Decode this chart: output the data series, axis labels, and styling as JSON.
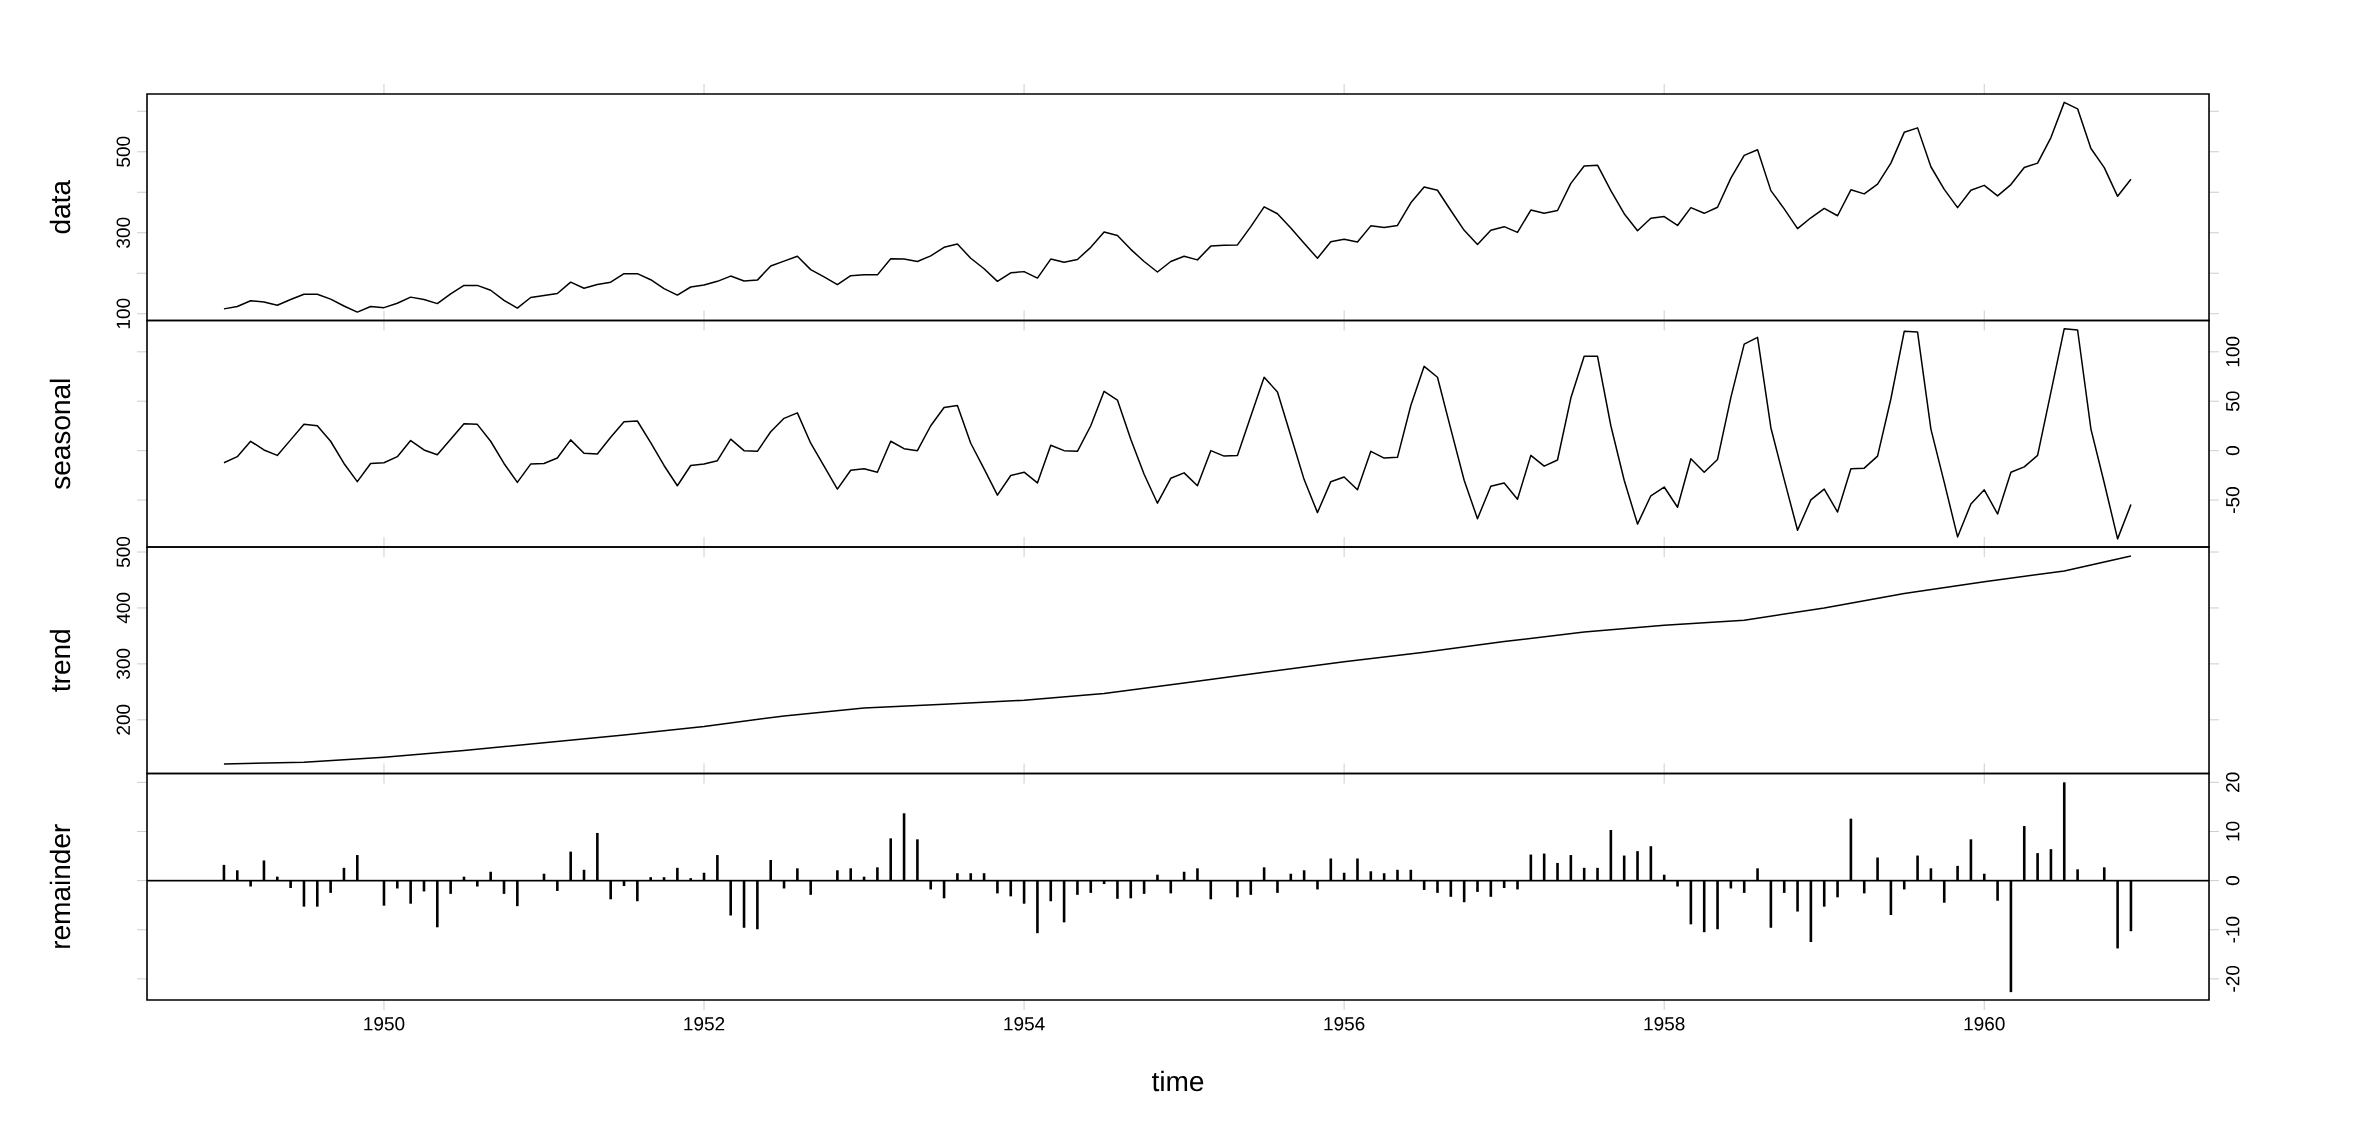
{
  "chart_data": [
    {
      "type": "line",
      "ylabel": "data",
      "tick_labels": "y",
      "xlim": [
        "1948-07-08",
        "1961-05-27"
      ],
      "xticks": [
        "1950",
        "1952",
        "1954",
        "1956",
        "1958",
        "1960"
      ],
      "ylim": [
        83.3,
        642.7
      ],
      "yticks": [
        100,
        {
          "value": 200,
          "label": null
        },
        300,
        {
          "value": 400,
          "label": null
        },
        500,
        {
          "value": 600,
          "label": null
        }
      ],
      "x": [
        "1949-01",
        "1949-02",
        "1949-03",
        "1949-04",
        "1949-05",
        "1949-06",
        "1949-07",
        "1949-08",
        "1949-09",
        "1949-10",
        "1949-11",
        "1949-12",
        "1950-01",
        "1950-02",
        "1950-03",
        "1950-04",
        "1950-05",
        "1950-06",
        "1950-07",
        "1950-08",
        "1950-09",
        "1950-10",
        "1950-11",
        "1950-12",
        "1951-01",
        "1951-02",
        "1951-03",
        "1951-04",
        "1951-05",
        "1951-06",
        "1951-07",
        "1951-08",
        "1951-09",
        "1951-10",
        "1951-11",
        "1951-12",
        "1952-01",
        "1952-02",
        "1952-03",
        "1952-04",
        "1952-05",
        "1952-06",
        "1952-07",
        "1952-08",
        "1952-09",
        "1952-10",
        "1952-11",
        "1952-12",
        "1953-01",
        "1953-02",
        "1953-03",
        "1953-04",
        "1953-05",
        "1953-06",
        "1953-07",
        "1953-08",
        "1953-09",
        "1953-10",
        "1953-11",
        "1953-12",
        "1954-01",
        "1954-02",
        "1954-03",
        "1954-04",
        "1954-05",
        "1954-06",
        "1954-07",
        "1954-08",
        "1954-09",
        "1954-10",
        "1954-11",
        "1954-12",
        "1955-01",
        "1955-02",
        "1955-03",
        "1955-04",
        "1955-05",
        "1955-06",
        "1955-07",
        "1955-08",
        "1955-09",
        "1955-10",
        "1955-11",
        "1955-12",
        "1956-01",
        "1956-02",
        "1956-03",
        "1956-04",
        "1956-05",
        "1956-06",
        "1956-07",
        "1956-08",
        "1956-09",
        "1956-10",
        "1956-11",
        "1956-12",
        "1957-01",
        "1957-02",
        "1957-03",
        "1957-04",
        "1957-05",
        "1957-06",
        "1957-07",
        "1957-08",
        "1957-09",
        "1957-10",
        "1957-11",
        "1957-12",
        "1958-01",
        "1958-02",
        "1958-03",
        "1958-04",
        "1958-05",
        "1958-06",
        "1958-07",
        "1958-08",
        "1958-09",
        "1958-10",
        "1958-11",
        "1958-12",
        "1959-01",
        "1959-02",
        "1959-03",
        "1959-04",
        "1959-05",
        "1959-06",
        "1959-07",
        "1959-08",
        "1959-09",
        "1959-10",
        "1959-11",
        "1959-12",
        "1960-01",
        "1960-02",
        "1960-03",
        "1960-04",
        "1960-05",
        "1960-06",
        "1960-07",
        "1960-08",
        "1960-09",
        "1960-10",
        "1960-11",
        "1960-12"
      ],
      "series": [
        {
          "color": "#000000",
          "values": [
            112,
            118,
            132,
            129,
            121,
            135,
            148,
            148,
            136,
            119,
            104,
            118,
            115,
            126,
            141,
            135,
            125,
            149,
            170,
            170,
            158,
            133,
            114,
            140,
            145,
            150,
            178,
            163,
            172,
            178,
            199,
            199,
            184,
            162,
            146,
            166,
            171,
            180,
            193,
            181,
            183,
            218,
            230,
            242,
            209,
            191,
            172,
            194,
            196,
            196,
            236,
            235,
            229,
            243,
            264,
            272,
            237,
            211,
            180,
            201,
            204,
            188,
            235,
            227,
            234,
            264,
            302,
            293,
            259,
            229,
            203,
            229,
            242,
            233,
            267,
            269,
            270,
            315,
            364,
            347,
            312,
            274,
            237,
            278,
            284,
            277,
            317,
            313,
            318,
            374,
            413,
            405,
            355,
            306,
            271,
            306,
            315,
            301,
            356,
            348,
            355,
            422,
            465,
            467,
            404,
            347,
            305,
            336,
            340,
            318,
            362,
            348,
            363,
            435,
            491,
            505,
            404,
            359,
            310,
            337,
            360,
            342,
            406,
            396,
            420,
            472,
            548,
            559,
            463,
            407,
            362,
            405,
            417,
            391,
            419,
            461,
            472,
            535,
            622,
            606,
            508,
            461,
            390,
            432
          ]
        }
      ]
    },
    {
      "type": "line",
      "ylabel": "seasonal",
      "tick_labels": "y",
      "xlim": [
        "1948-07-08",
        "1961-05-27"
      ],
      "xticks": [
        "1950",
        "1952",
        "1954",
        "1956",
        "1958",
        "1960"
      ],
      "y2lim": [
        -97.5,
        131.7
      ],
      "y2ticks": [
        -50,
        0,
        50,
        100
      ],
      "x": [
        "1949-01",
        "1949-02",
        "1949-03",
        "1949-04",
        "1949-05",
        "1949-06",
        "1949-07",
        "1949-08",
        "1949-09",
        "1949-10",
        "1949-11",
        "1949-12",
        "1950-01",
        "1950-02",
        "1950-03",
        "1950-04",
        "1950-05",
        "1950-06",
        "1950-07",
        "1950-08",
        "1950-09",
        "1950-10",
        "1950-11",
        "1950-12",
        "1951-01",
        "1951-02",
        "1951-03",
        "1951-04",
        "1951-05",
        "1951-06",
        "1951-07",
        "1951-08",
        "1951-09",
        "1951-10",
        "1951-11",
        "1951-12",
        "1952-01",
        "1952-02",
        "1952-03",
        "1952-04",
        "1952-05",
        "1952-06",
        "1952-07",
        "1952-08",
        "1952-09",
        "1952-10",
        "1952-11",
        "1952-12",
        "1953-01",
        "1953-02",
        "1953-03",
        "1953-04",
        "1953-05",
        "1953-06",
        "1953-07",
        "1953-08",
        "1953-09",
        "1953-10",
        "1953-11",
        "1953-12",
        "1954-01",
        "1954-02",
        "1954-03",
        "1954-04",
        "1954-05",
        "1954-06",
        "1954-07",
        "1954-08",
        "1954-09",
        "1954-10",
        "1954-11",
        "1954-12",
        "1955-01",
        "1955-02",
        "1955-03",
        "1955-04",
        "1955-05",
        "1955-06",
        "1955-07",
        "1955-08",
        "1955-09",
        "1955-10",
        "1955-11",
        "1955-12",
        "1956-01",
        "1956-02",
        "1956-03",
        "1956-04",
        "1956-05",
        "1956-06",
        "1956-07",
        "1956-08",
        "1956-09",
        "1956-10",
        "1956-11",
        "1956-12",
        "1957-01",
        "1957-02",
        "1957-03",
        "1957-04",
        "1957-05",
        "1957-06",
        "1957-07",
        "1957-08",
        "1957-09",
        "1957-10",
        "1957-11",
        "1957-12",
        "1958-01",
        "1958-02",
        "1958-03",
        "1958-04",
        "1958-05",
        "1958-06",
        "1958-07",
        "1958-08",
        "1958-09",
        "1958-10",
        "1958-11",
        "1958-12",
        "1959-01",
        "1959-02",
        "1959-03",
        "1959-04",
        "1959-05",
        "1959-06",
        "1959-07",
        "1959-08",
        "1959-09",
        "1959-10",
        "1959-11",
        "1959-12",
        "1960-01",
        "1960-02",
        "1960-03",
        "1960-04",
        "1960-05",
        "1960-06",
        "1960-07",
        "1960-08",
        "1960-09",
        "1960-10",
        "1960-11",
        "1960-12"
      ],
      "series": [
        {
          "color": "#000000",
          "axis": "y2",
          "values": [
            -12.3,
            -6.1,
            9.5,
            0.7,
            -4.8,
            10.9,
            26.6,
            25.2,
            9.5,
            -13.0,
            -31.4,
            -13.0,
            -12.3,
            -6.1,
            10.2,
            0.7,
            -4.1,
            11.6,
            27.3,
            26.6,
            9.5,
            -13.0,
            -32.1,
            -13.6,
            -13.0,
            -7.5,
            10.9,
            -2.7,
            -3.4,
            13.6,
            29.3,
            30.0,
            8.2,
            -15.0,
            -35.5,
            -15.0,
            -13.6,
            -10.2,
            11.6,
            0,
            -0.7,
            19.1,
            32.7,
            38.2,
            7.5,
            -15.7,
            -38.9,
            -19.8,
            -18.4,
            -21.8,
            9.5,
            2.0,
            0,
            25.2,
            43.6,
            45.7,
            7.5,
            -18.4,
            -45.0,
            -25.2,
            -21.8,
            -32.7,
            5.5,
            0,
            -0.7,
            25.2,
            60.0,
            51.2,
            11.6,
            -23.9,
            -53.2,
            -28.0,
            -22.5,
            -35.5,
            0,
            -5.5,
            -4.8,
            34.8,
            74.3,
            59.3,
            15.0,
            -29.3,
            -62.7,
            -31.4,
            -26.6,
            -39.6,
            -0.7,
            -7.5,
            -6.8,
            45.7,
            85.3,
            74.3,
            21.8,
            -30.0,
            -68.9,
            -36.1,
            -32.7,
            -49.1,
            -4.8,
            -15.7,
            -9.5,
            53.2,
            95.5,
            95.5,
            25.2,
            -30.0,
            -74.3,
            -45.7,
            -36.8,
            -57.3,
            -8.2,
            -21.8,
            -8.9,
            53.9,
            107.8,
            114.6,
            23.2,
            -29.3,
            -80.5,
            -49.8,
            -38.9,
            -62.1,
            -18.4,
            -17.7,
            -5.5,
            52.5,
            120.7,
            120.0,
            21.8,
            -32.1,
            -87.3,
            -53.9,
            -39.6,
            -64.1,
            -21.8,
            -16.4,
            -4.8,
            59.3,
            123.4,
            122.1,
            21.8,
            -32.7,
            -89.3,
            -54.6
          ]
        }
      ]
    },
    {
      "type": "line",
      "ylabel": "trend",
      "tick_labels": "y",
      "xlim": [
        "1948-07-08",
        "1961-05-27"
      ],
      "xticks": [
        "1950",
        "1952",
        "1954",
        "1956",
        "1958",
        "1960"
      ],
      "ylim": [
        104,
        509
      ],
      "yticks": [
        200,
        300,
        400,
        500
      ],
      "x": [
        "1949-01",
        "1949-07",
        "1950-01",
        "1950-07",
        "1951-01",
        "1951-07",
        "1952-01",
        "1952-07",
        "1953-01",
        "1953-07",
        "1954-01",
        "1954-07",
        "1955-01",
        "1955-07",
        "1956-01",
        "1956-07",
        "1957-01",
        "1957-07",
        "1958-01",
        "1958-07",
        "1959-01",
        "1959-07",
        "1960-01",
        "1960-07",
        "1960-12"
      ],
      "series": [
        {
          "color": "#000000",
          "values": [
            121,
            124,
            133,
            145,
            159,
            173,
            188,
            207,
            221,
            228,
            235,
            247,
            266,
            285,
            304,
            321,
            340,
            357,
            369,
            378,
            400,
            426,
            447,
            466,
            493
          ]
        }
      ]
    },
    {
      "type": "bar",
      "ylabel": "remainder",
      "xlabel": "time",
      "xlim": [
        "1948-07-08",
        "1961-05-27"
      ],
      "xticks": [
        "1950",
        "1952",
        "1954",
        "1956",
        "1958",
        "1960"
      ],
      "y2lim": [
        -24.3,
        21.8
      ],
      "y2ticks": [
        -20,
        -10,
        0,
        10,
        20
      ],
      "ref_lines": [
        {
          "axis": "y2",
          "value": 0,
          "color": "#000000"
        }
      ],
      "x": [
        "1949-01",
        "1949-02",
        "1949-03",
        "1949-04",
        "1949-05",
        "1949-06",
        "1949-07",
        "1949-08",
        "1949-09",
        "1949-10",
        "1949-11",
        "1949-12",
        "1950-01",
        "1950-02",
        "1950-03",
        "1950-04",
        "1950-05",
        "1950-06",
        "1950-07",
        "1950-08",
        "1950-09",
        "1950-10",
        "1950-11",
        "1950-12",
        "1951-01",
        "1951-02",
        "1951-03",
        "1951-04",
        "1951-05",
        "1951-06",
        "1951-07",
        "1951-08",
        "1951-09",
        "1951-10",
        "1951-11",
        "1951-12",
        "1952-01",
        "1952-02",
        "1952-03",
        "1952-04",
        "1952-05",
        "1952-06",
        "1952-07",
        "1952-08",
        "1952-09",
        "1952-10",
        "1952-11",
        "1952-12",
        "1953-01",
        "1953-02",
        "1953-03",
        "1953-04",
        "1953-05",
        "1953-06",
        "1953-07",
        "1953-08",
        "1953-09",
        "1953-10",
        "1953-11",
        "1953-12",
        "1954-01",
        "1954-02",
        "1954-03",
        "1954-04",
        "1954-05",
        "1954-06",
        "1954-07",
        "1954-08",
        "1954-09",
        "1954-10",
        "1954-11",
        "1954-12",
        "1955-01",
        "1955-02",
        "1955-03",
        "1955-04",
        "1955-05",
        "1955-06",
        "1955-07",
        "1955-08",
        "1955-09",
        "1955-10",
        "1955-11",
        "1955-12",
        "1956-01",
        "1956-02",
        "1956-03",
        "1956-04",
        "1956-05",
        "1956-06",
        "1956-07",
        "1956-08",
        "1956-09",
        "1956-10",
        "1956-11",
        "1956-12",
        "1957-01",
        "1957-02",
        "1957-03",
        "1957-04",
        "1957-05",
        "1957-06",
        "1957-07",
        "1957-08",
        "1957-09",
        "1957-10",
        "1957-11",
        "1957-12",
        "1958-01",
        "1958-02",
        "1958-03",
        "1958-04",
        "1958-05",
        "1958-06",
        "1958-07",
        "1958-08",
        "1958-09",
        "1958-10",
        "1958-11",
        "1958-12",
        "1959-01",
        "1959-02",
        "1959-03",
        "1959-04",
        "1959-05",
        "1959-06",
        "1959-07",
        "1959-08",
        "1959-09",
        "1959-10",
        "1959-11",
        "1959-12",
        "1960-01",
        "1960-02",
        "1960-03",
        "1960-04",
        "1960-05",
        "1960-06",
        "1960-07",
        "1960-08",
        "1960-09",
        "1960-10",
        "1960-11",
        "1960-12"
      ],
      "series": [
        {
          "color": "#000000",
          "axis": "y2",
          "values": [
            3.2,
            2.1,
            -1.2,
            4.1,
            0.8,
            -1.5,
            -5.3,
            -5.3,
            -2.5,
            2.6,
            5.2,
            0.1,
            -5.1,
            -1.6,
            -4.7,
            -2.2,
            -9.5,
            -2.7,
            0.8,
            -1.2,
            1.8,
            -2.7,
            -5.2,
            0.1,
            1.4,
            -2.1,
            5.9,
            2.2,
            9.7,
            -3.8,
            -1.1,
            -4.2,
            0.7,
            0.7,
            2.6,
            0.5,
            1.6,
            5.2,
            -7.1,
            -9.6,
            -9.9,
            4.2,
            -1.6,
            2.5,
            -2.9,
            0.1,
            2.1,
            2.5,
            0.8,
            2.7,
            8.6,
            13.7,
            8.4,
            -1.8,
            -3.6,
            1.5,
            1.5,
            1.5,
            -2.6,
            -3.2,
            -4.7,
            -10.7,
            -4.2,
            -8.5,
            -2.9,
            -2.5,
            -0.7,
            -3.7,
            -3.6,
            -2.7,
            1.2,
            -2.6,
            1.8,
            2.5,
            -3.8,
            0.1,
            -3.4,
            -2.9,
            2.7,
            -2.5,
            1.4,
            2.1,
            -1.8,
            4.5,
            1.6,
            4.5,
            1.9,
            1.5,
            2.2,
            2.2,
            -1.9,
            -2.5,
            -3.3,
            -4.4,
            -2.3,
            -3.3,
            -1.5,
            -1.8,
            5.3,
            5.5,
            3.6,
            5.2,
            2.6,
            2.6,
            10.3,
            5.1,
            6.0,
            7.0,
            1.2,
            -1.2,
            -8.9,
            -10.5,
            -9.9,
            -1.6,
            -2.5,
            2.5,
            -9.6,
            -2.5,
            -6.3,
            -12.5,
            -5.3,
            -3.4,
            12.6,
            -2.6,
            4.7,
            -7.0,
            -1.8,
            5.1,
            2.5,
            -4.5,
            3.0,
            8.4,
            1.4,
            -4.1,
            -22.7,
            11.1,
            5.6,
            6.4,
            20.0,
            2.3,
            null,
            2.7,
            -13.8,
            -10.3
          ]
        }
      ]
    }
  ]
}
